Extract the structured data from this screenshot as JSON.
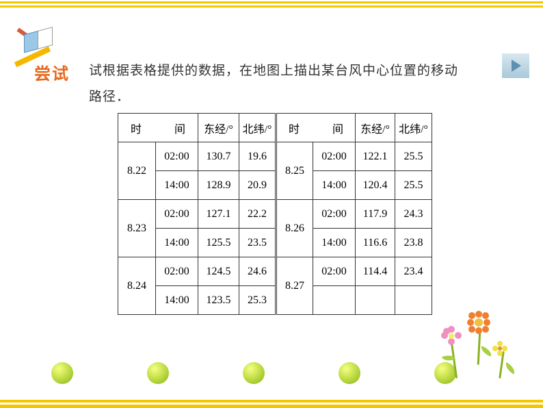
{
  "label": "尝试",
  "prompt_text1": "试根据表格提供的数据，在地图上描出某台风中心位置的移动",
  "prompt_text2": "路径．",
  "headers": {
    "time": "时　间",
    "east": "东经/°",
    "north": "北纬/°"
  },
  "rows": [
    {
      "date": "8.22",
      "t1": "02:00",
      "e1": "130.7",
      "n1": "19.6",
      "t2": "14:00",
      "e2": "128.9",
      "n2": "20.9",
      "dateR": "8.25",
      "rt1": "02:00",
      "re1": "122.1",
      "rn1": "25.5",
      "rt2": "14:00",
      "re2": "120.4",
      "rn2": "25.5"
    },
    {
      "date": "8.23",
      "t1": "02:00",
      "e1": "127.1",
      "n1": "22.2",
      "t2": "14:00",
      "e2": "125.5",
      "n2": "23.5",
      "dateR": "8.26",
      "rt1": "02:00",
      "re1": "117.9",
      "rn1": "24.3",
      "rt2": "14:00",
      "re2": "116.6",
      "rn2": "23.8"
    },
    {
      "date": "8.24",
      "t1": "02:00",
      "e1": "124.5",
      "n1": "24.6",
      "t2": "14:00",
      "e2": "123.5",
      "n2": "25.3",
      "dateR": "8.27",
      "rt1": "02:00",
      "re1": "114.4",
      "rn1": "23.4",
      "rt2": "",
      "re2": "",
      "rn2": ""
    }
  ],
  "colors": {
    "accent": "#e8671a",
    "stripe": "#f5c500",
    "dot_light": "#f5ff80",
    "dot_dark": "#8ab020"
  }
}
